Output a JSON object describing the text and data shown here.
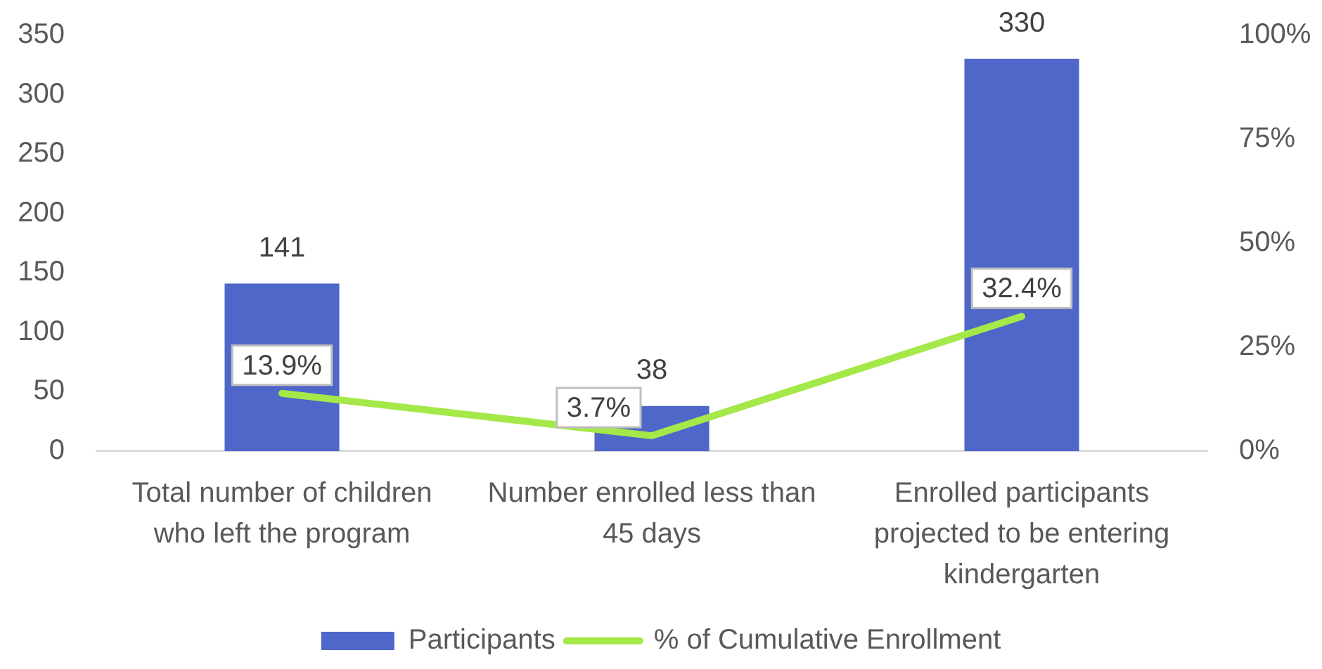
{
  "chart_data": {
    "type": "bar",
    "categories": [
      "Total number of children who left the program",
      "Number enrolled less than 45 days",
      "Enrolled participants projected to be entering kindergarten"
    ],
    "series": [
      {
        "name": "Participants",
        "color": "#4e67c8",
        "values": [
          141,
          38,
          330
        ],
        "value_labels": [
          "141",
          "38",
          "330"
        ]
      },
      {
        "name": "% of Cumulative Enrollment",
        "type": "line",
        "axis": "y2",
        "color": "#a5e84a",
        "values": [
          13.9,
          3.7,
          32.4
        ],
        "value_labels": [
          "13.9%",
          "3.7%",
          "32.4%"
        ]
      }
    ],
    "ylim": [
      0,
      350
    ],
    "yticks": [
      0,
      50,
      100,
      150,
      200,
      250,
      300,
      350
    ],
    "y2lim": [
      0,
      100
    ],
    "y2ticks": [
      {
        "value": 0,
        "label": "0%"
      },
      {
        "value": 25,
        "label": "25%"
      },
      {
        "value": 50,
        "label": "50%"
      },
      {
        "value": 75,
        "label": "75%"
      },
      {
        "value": 100,
        "label": "100%"
      }
    ],
    "legend": "bottom"
  }
}
